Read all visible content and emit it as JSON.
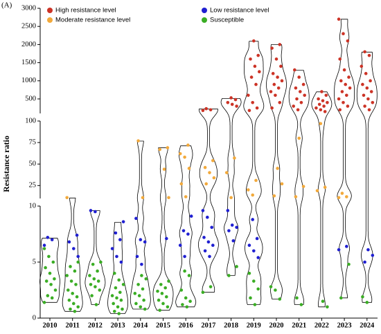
{
  "chart_data": {
    "type": "violin-scatter",
    "panel_label": "(A)",
    "y_label": "Resistance ratio",
    "categories": [
      2010,
      2011,
      2012,
      2013,
      2014,
      2015,
      2016,
      2017,
      2018,
      2019,
      2020,
      2021,
      2022,
      2023,
      2024
    ],
    "y_segments": [
      {
        "ylim": [
          0,
          10
        ],
        "yticks": [
          0,
          5,
          10
        ]
      },
      {
        "ylim": [
          10,
          100
        ],
        "yticks": [
          25,
          50,
          75,
          100
        ]
      },
      {
        "ylim": [
          100,
          3000
        ],
        "yticks": [
          500,
          1000,
          1500,
          2000,
          2500,
          3000
        ]
      }
    ],
    "series": [
      {
        "name": "High resistance level",
        "color": "#cc3326",
        "x": [
          2017,
          2017,
          2017,
          2018,
          2018,
          2018,
          2018,
          2018,
          2019,
          2019,
          2019,
          2019,
          2019,
          2019,
          2019,
          2019,
          2019,
          2019,
          2019,
          2020,
          2020,
          2020,
          2020,
          2020,
          2020,
          2020,
          2020,
          2020,
          2020,
          2020,
          2020,
          2020,
          2021,
          2021,
          2021,
          2021,
          2021,
          2021,
          2021,
          2021,
          2021,
          2021,
          2022,
          2022,
          2022,
          2022,
          2022,
          2022,
          2022,
          2022,
          2022,
          2022,
          2023,
          2023,
          2023,
          2023,
          2023,
          2023,
          2023,
          2023,
          2023,
          2023,
          2023,
          2023,
          2023,
          2023,
          2023,
          2024,
          2024,
          2024,
          2024,
          2024,
          2024,
          2024,
          2024,
          2024,
          2024,
          2024,
          2024,
          2024
        ],
        "values": [
          180,
          200,
          230,
          300,
          350,
          400,
          480,
          530,
          180,
          250,
          400,
          600,
          900,
          1100,
          1250,
          1400,
          1600,
          1700,
          2100,
          250,
          400,
          600,
          700,
          800,
          900,
          1000,
          1100,
          1200,
          1400,
          1600,
          1900,
          2000,
          200,
          300,
          400,
          500,
          600,
          700,
          800,
          900,
          1100,
          1300,
          150,
          200,
          250,
          300,
          350,
          400,
          450,
          500,
          600,
          700,
          200,
          300,
          400,
          500,
          600,
          700,
          800,
          900,
          1000,
          1100,
          1300,
          1600,
          2100,
          2300,
          2700,
          200,
          300,
          400,
          500,
          600,
          700,
          800,
          900,
          1000,
          1200,
          1400,
          1700,
          1800
        ]
      },
      {
        "name": "Moderate resistance level",
        "color": "#f2a93b",
        "x": [
          2011,
          2014,
          2014,
          2015,
          2015,
          2015,
          2015,
          2016,
          2016,
          2016,
          2016,
          2016,
          2016,
          2017,
          2017,
          2017,
          2017,
          2017,
          2018,
          2018,
          2018,
          2019,
          2019,
          2019,
          2020,
          2020,
          2020,
          2021,
          2021,
          2021,
          2022,
          2022,
          2022,
          2023,
          2023,
          2023
        ],
        "values": [
          11,
          11,
          77,
          11,
          44,
          67,
          69,
          12,
          27,
          45,
          58,
          62,
          72,
          27,
          34,
          40,
          46,
          54,
          11,
          40,
          57,
          14,
          20,
          31,
          13,
          27,
          45,
          12,
          24,
          80,
          19,
          23,
          97,
          11,
          12,
          16
        ]
      },
      {
        "name": "Low resistance level",
        "color": "#1f1fd1",
        "x": [
          2010,
          2010,
          2010,
          2011,
          2011,
          2011,
          2011,
          2012,
          2012,
          2013,
          2013,
          2013,
          2013,
          2013,
          2013,
          2014,
          2014,
          2014,
          2014,
          2014,
          2015,
          2016,
          2016,
          2016,
          2016,
          2016,
          2017,
          2017,
          2017,
          2017,
          2017,
          2017,
          2017,
          2017,
          2018,
          2018,
          2018,
          2018,
          2018,
          2019,
          2019,
          2019,
          2019,
          2019,
          2023,
          2023,
          2024,
          2024,
          2024
        ],
        "values": [
          6.5,
          7.0,
          7.2,
          5.5,
          6.2,
          6.8,
          7.4,
          9.5,
          9.6,
          5.0,
          5.5,
          6.2,
          7.0,
          7.6,
          8.6,
          4.8,
          5.5,
          6.8,
          7.0,
          8.9,
          7.1,
          5.5,
          6.5,
          7.5,
          7.8,
          9.1,
          5.5,
          6.0,
          6.5,
          6.8,
          7.2,
          8.1,
          9.0,
          9.6,
          6.9,
          7.8,
          8.1,
          8.3,
          9.6,
          5.4,
          6.0,
          6.5,
          7.1,
          8.8,
          6.1,
          6.4,
          5.0,
          5.6,
          6.1
        ]
      },
      {
        "name": "Susceptible",
        "color": "#3aad24",
        "x": [
          2010,
          2010,
          2010,
          2010,
          2010,
          2010,
          2010,
          2010,
          2010,
          2010,
          2010,
          2010,
          2011,
          2011,
          2011,
          2011,
          2011,
          2011,
          2011,
          2011,
          2011,
          2011,
          2011,
          2011,
          2011,
          2011,
          2012,
          2012,
          2012,
          2012,
          2012,
          2012,
          2012,
          2012,
          2012,
          2012,
          2012,
          2013,
          2013,
          2013,
          2013,
          2013,
          2013,
          2013,
          2013,
          2013,
          2013,
          2013,
          2013,
          2013,
          2014,
          2014,
          2014,
          2014,
          2014,
          2014,
          2014,
          2014,
          2014,
          2014,
          2015,
          2015,
          2015,
          2015,
          2015,
          2015,
          2015,
          2015,
          2015,
          2015,
          2016,
          2016,
          2016,
          2016,
          2016,
          2016,
          2016,
          2017,
          2017,
          2018,
          2018,
          2019,
          2019,
          2019,
          2019,
          2019,
          2020,
          2020,
          2020,
          2021,
          2021,
          2022,
          2022,
          2023,
          2023,
          2024,
          2024
        ],
        "values": [
          1.4,
          1.8,
          2.0,
          2.5,
          3.0,
          3.3,
          3.5,
          4.0,
          4.5,
          5.0,
          5.5,
          6.2,
          0.6,
          0.8,
          1.0,
          1.3,
          1.6,
          1.9,
          2.2,
          2.5,
          3.0,
          3.3,
          3.8,
          4.2,
          4.6,
          5.0,
          1.2,
          2.0,
          2.5,
          2.8,
          3.0,
          3.3,
          3.5,
          3.8,
          4.2,
          4.8,
          5.0,
          0.4,
          0.6,
          0.8,
          1.0,
          1.3,
          1.6,
          1.8,
          2.0,
          2.3,
          2.7,
          3.0,
          3.4,
          4.0,
          0.8,
          1.0,
          1.3,
          1.6,
          2.0,
          2.2,
          2.6,
          3.0,
          3.5,
          3.8,
          0.7,
          1.0,
          1.3,
          1.6,
          1.9,
          2.2,
          2.4,
          2.7,
          3.0,
          3.3,
          1.0,
          1.2,
          1.5,
          1.8,
          2.5,
          3.8,
          4.2,
          2.3,
          2.8,
          3.8,
          4.6,
          1.2,
          1.8,
          2.6,
          3.3,
          4.0,
          1.7,
          2.5,
          2.8,
          1.2,
          1.8,
          1.0,
          1.5,
          1.8,
          4.8,
          1.4,
          1.9
        ]
      }
    ]
  }
}
